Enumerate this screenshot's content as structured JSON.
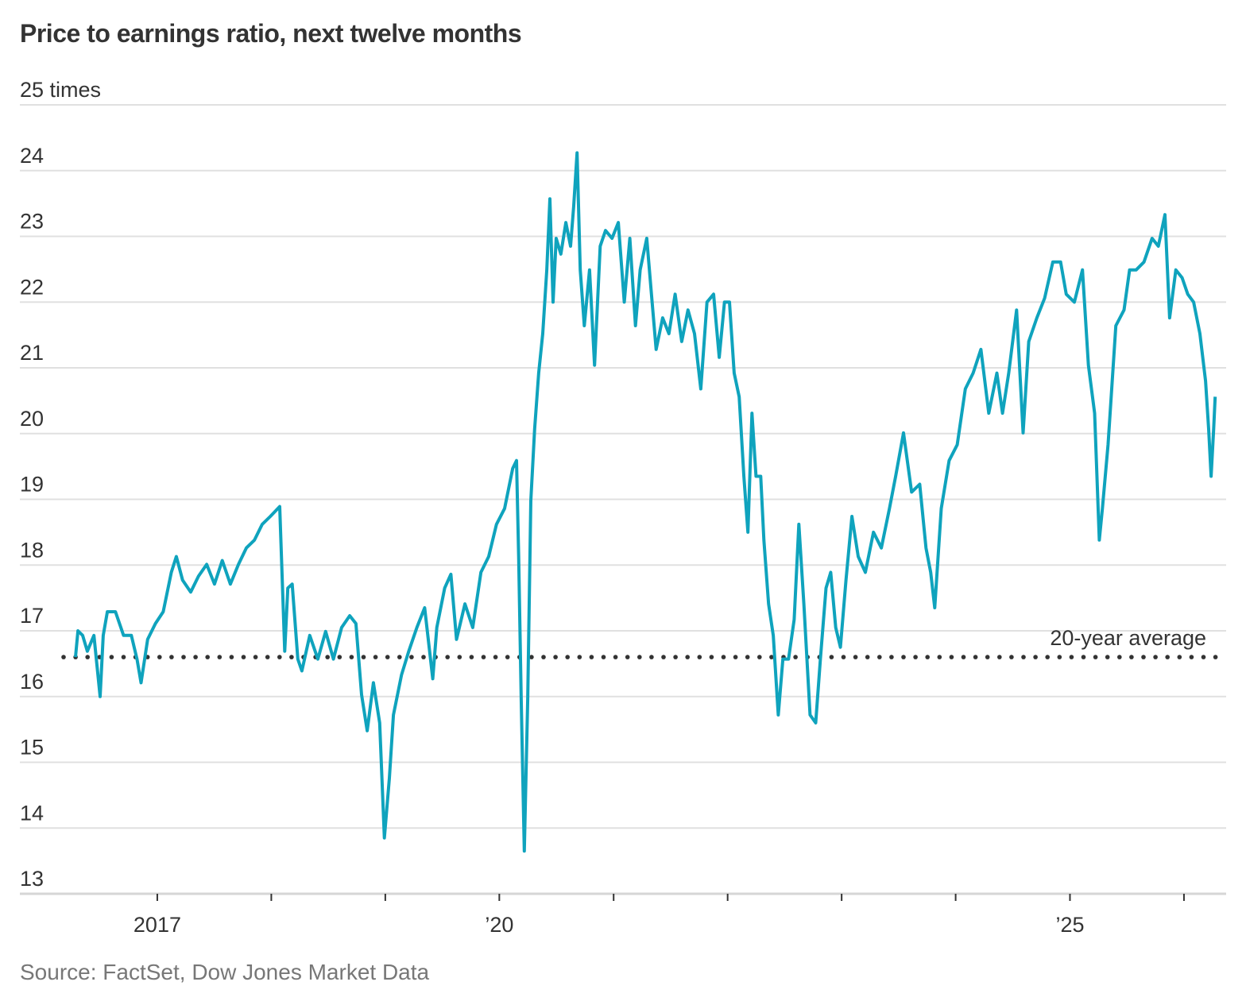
{
  "chart_data": {
    "type": "line",
    "title": "Price to earnings ratio, next twelve months",
    "source": "Source: FactSet, Dow Jones Market Data",
    "y_unit_label": "times",
    "ylim": [
      13,
      25
    ],
    "yticks": [
      13,
      14,
      15,
      16,
      17,
      18,
      19,
      20,
      21,
      22,
      23,
      24,
      25
    ],
    "ytick_labels": [
      "13",
      "14",
      "15",
      "16",
      "17",
      "18",
      "19",
      "20",
      "21",
      "22",
      "23",
      "24",
      "25 times"
    ],
    "xlim": [
      "2015-10-19",
      "2026-05-16"
    ],
    "xticks": [
      "2017-01-01",
      "2018-01-01",
      "2019-01-01",
      "2020-01-01",
      "2021-01-01",
      "2022-01-01",
      "2023-01-01",
      "2024-01-01",
      "2025-01-01",
      "2026-01-01"
    ],
    "xtick_labels": [
      {
        "date": "2017-01-01",
        "label": "2017"
      },
      {
        "date": "2020-01-01",
        "label": "’20"
      },
      {
        "date": "2025-01-01",
        "label": "’25"
      }
    ],
    "grid": true,
    "colors": {
      "line": "#0fa3bd",
      "average": "#333333",
      "grid": "#e0e0e0"
    },
    "reference_line": {
      "label": "20-year average",
      "value": 16.6,
      "style": "dotted"
    },
    "series": [
      {
        "x": [
          "2016-04-14",
          "2016-04-22",
          "2016-05-07",
          "2016-05-22",
          "2016-06-12",
          "2016-07-02",
          "2016-07-12",
          "2016-07-25",
          "2016-08-20",
          "2016-09-15",
          "2016-10-10",
          "2016-10-28",
          "2016-11-10",
          "2016-12-01",
          "2016-12-26",
          "2017-01-20",
          "2017-02-15",
          "2017-03-03",
          "2017-03-23",
          "2017-04-18",
          "2017-05-13",
          "2017-06-08",
          "2017-07-03",
          "2017-07-28",
          "2017-08-23",
          "2017-09-18",
          "2017-10-13",
          "2017-11-08",
          "2017-12-03",
          "2017-12-29",
          "2018-01-28",
          "2018-02-13",
          "2018-02-23",
          "2018-03-09",
          "2018-03-27",
          "2018-04-09",
          "2018-05-04",
          "2018-05-30",
          "2018-06-24",
          "2018-07-19",
          "2018-08-14",
          "2018-09-09",
          "2018-09-29",
          "2018-10-17",
          "2018-11-04",
          "2018-11-24",
          "2018-12-14",
          "2018-12-29",
          "2019-01-14",
          "2019-01-27",
          "2019-02-22",
          "2019-03-17",
          "2019-04-12",
          "2019-05-07",
          "2019-06-02",
          "2019-06-15",
          "2019-07-10",
          "2019-07-30",
          "2019-08-17",
          "2019-09-13",
          "2019-10-08",
          "2019-11-03",
          "2019-11-28",
          "2019-12-23",
          "2020-01-18",
          "2020-02-13",
          "2020-02-25",
          "2020-03-03",
          "2020-03-11",
          "2020-03-21",
          "2020-04-01",
          "2020-04-11",
          "2020-04-23",
          "2020-05-06",
          "2020-05-19",
          "2020-06-01",
          "2020-06-11",
          "2020-06-21",
          "2020-07-01",
          "2020-07-16",
          "2020-08-01",
          "2020-08-16",
          "2020-08-26",
          "2020-09-06",
          "2020-09-16",
          "2020-09-29",
          "2020-10-16",
          "2020-11-01",
          "2020-11-19",
          "2020-12-06",
          "2020-12-27",
          "2021-01-16",
          "2021-02-04",
          "2021-02-22",
          "2021-03-12",
          "2021-03-27",
          "2021-04-17",
          "2021-05-02",
          "2021-05-17",
          "2021-06-07",
          "2021-06-27",
          "2021-07-17",
          "2021-08-07",
          "2021-08-27",
          "2021-09-17",
          "2021-10-07",
          "2021-10-27",
          "2021-11-17",
          "2021-12-05",
          "2021-12-22",
          "2022-01-07",
          "2022-01-22",
          "2022-02-07",
          "2022-02-22",
          "2022-03-07",
          "2022-03-20",
          "2022-04-02",
          "2022-04-17",
          "2022-04-27",
          "2022-05-12",
          "2022-05-27",
          "2022-06-12",
          "2022-06-27",
          "2022-07-15",
          "2022-08-02",
          "2022-08-17",
          "2022-09-02",
          "2022-09-22",
          "2022-10-10",
          "2022-10-25",
          "2022-11-12",
          "2022-11-27",
          "2022-12-13",
          "2022-12-28",
          "2023-01-15",
          "2023-02-03",
          "2023-02-23",
          "2023-03-18",
          "2023-04-13",
          "2023-05-08",
          "2023-06-03",
          "2023-06-23",
          "2023-07-18",
          "2023-08-13",
          "2023-09-08",
          "2023-09-28",
          "2023-10-13",
          "2023-10-26",
          "2023-11-16",
          "2023-12-11",
          "2024-01-06",
          "2024-02-01",
          "2024-02-26",
          "2024-03-22",
          "2024-04-16",
          "2024-05-12",
          "2024-05-30",
          "2024-06-19",
          "2024-07-14",
          "2024-08-04",
          "2024-08-22",
          "2024-09-17",
          "2024-10-12",
          "2024-11-07",
          "2024-12-02",
          "2024-12-20",
          "2025-01-15",
          "2025-02-10",
          "2025-03-01",
          "2025-03-21",
          "2025-04-05",
          "2025-04-15",
          "2025-05-03",
          "2025-05-28",
          "2025-06-23",
          "2025-07-11",
          "2025-08-01",
          "2025-08-26",
          "2025-09-21",
          "2025-10-11",
          "2025-11-01",
          "2025-11-16",
          "2025-12-06",
          "2025-12-26",
          "2026-01-13",
          "2026-02-01",
          "2026-02-21",
          "2026-03-11",
          "2026-03-21",
          "2026-03-29",
          "2026-04-06",
          "2026-04-11"
        ],
        "y": [
          16.6,
          17.0,
          16.93,
          16.69,
          16.93,
          16.0,
          16.93,
          17.29,
          17.29,
          16.93,
          16.93,
          16.57,
          16.21,
          16.87,
          17.11,
          17.29,
          17.89,
          18.13,
          17.77,
          17.59,
          17.83,
          18.01,
          17.71,
          18.07,
          17.71,
          18.01,
          18.26,
          18.38,
          18.62,
          18.74,
          18.89,
          16.69,
          17.65,
          17.71,
          16.57,
          16.39,
          16.93,
          16.57,
          16.99,
          16.57,
          17.05,
          17.23,
          17.11,
          16.03,
          15.48,
          16.21,
          15.6,
          13.85,
          14.76,
          15.72,
          16.33,
          16.69,
          17.05,
          17.35,
          16.27,
          17.05,
          17.65,
          17.86,
          16.87,
          17.41,
          17.05,
          17.89,
          18.13,
          18.62,
          18.86,
          19.47,
          19.59,
          18.13,
          15.96,
          13.65,
          15.96,
          18.98,
          20.07,
          20.92,
          21.52,
          22.49,
          23.57,
          22.0,
          22.97,
          22.73,
          23.21,
          22.85,
          23.45,
          24.27,
          22.49,
          21.64,
          22.49,
          21.04,
          22.85,
          23.09,
          22.97,
          23.21,
          22.0,
          22.97,
          21.64,
          22.49,
          22.97,
          22.12,
          21.28,
          21.76,
          21.52,
          22.12,
          21.4,
          21.88,
          21.52,
          20.68,
          22.0,
          22.12,
          21.16,
          22.0,
          22.0,
          20.92,
          20.56,
          19.35,
          18.5,
          20.31,
          19.35,
          19.35,
          18.38,
          17.41,
          16.93,
          15.72,
          16.57,
          16.57,
          17.17,
          18.62,
          17.41,
          15.72,
          15.6,
          16.57,
          17.65,
          17.89,
          17.05,
          16.75,
          17.77,
          18.74,
          18.13,
          17.89,
          18.5,
          18.26,
          18.86,
          19.35,
          20.01,
          19.11,
          19.23,
          18.26,
          17.89,
          17.35,
          18.86,
          19.59,
          19.83,
          20.68,
          20.92,
          21.28,
          20.31,
          20.92,
          20.31,
          20.92,
          21.88,
          20.01,
          21.4,
          21.76,
          22.06,
          22.61,
          22.61,
          22.12,
          22.0,
          22.49,
          21.04,
          20.31,
          18.38,
          18.86,
          19.83,
          21.64,
          21.88,
          22.49,
          22.49,
          22.61,
          22.97,
          22.85,
          23.33,
          21.76,
          22.49,
          22.37,
          22.12,
          22.0,
          21.52,
          20.8,
          20.07,
          19.35,
          20.07,
          20.56
        ]
      }
    ]
  }
}
